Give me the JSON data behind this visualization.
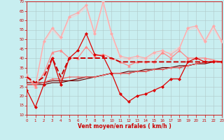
{
  "xlabel": "Vent moyen/en rafales ( km/h )",
  "xlim": [
    0,
    23
  ],
  "ylim": [
    10,
    70
  ],
  "yticks": [
    10,
    15,
    20,
    25,
    30,
    35,
    40,
    45,
    50,
    55,
    60,
    65,
    70
  ],
  "xticks": [
    0,
    1,
    2,
    3,
    4,
    5,
    6,
    7,
    8,
    9,
    10,
    11,
    12,
    13,
    14,
    15,
    16,
    17,
    18,
    19,
    20,
    21,
    22,
    23
  ],
  "background_color": "#c8eef0",
  "grid_color": "#b0c8c8",
  "series": [
    {
      "x": [
        0,
        1,
        2,
        3,
        4,
        5,
        6,
        7,
        8,
        9,
        10,
        11,
        12,
        13,
        14,
        15,
        16,
        17,
        18,
        19,
        20,
        21,
        22,
        23
      ],
      "y": [
        23,
        14,
        26,
        40,
        26,
        40,
        44,
        53,
        42,
        41,
        32,
        21,
        17,
        20,
        21,
        23,
        25,
        29,
        29,
        38,
        40,
        38,
        38,
        38
      ],
      "color": "#dd0000",
      "linewidth": 0.9,
      "marker": "D",
      "markersize": 2.0,
      "zorder": 6,
      "linestyle": "-"
    },
    {
      "x": [
        0,
        1,
        2,
        3,
        4,
        5,
        6,
        7,
        8,
        9,
        10,
        11,
        12,
        13,
        14,
        15,
        16,
        17,
        18,
        19,
        20,
        21,
        22,
        23
      ],
      "y": [
        30,
        27,
        30,
        40,
        30,
        40,
        40,
        40,
        40,
        40,
        40,
        38,
        38,
        38,
        38,
        38,
        38,
        38,
        38,
        38,
        38,
        38,
        38,
        38
      ],
      "color": "#cc0000",
      "linewidth": 1.4,
      "marker": null,
      "markersize": 0,
      "zorder": 5,
      "linestyle": "--"
    },
    {
      "x": [
        0,
        1,
        2,
        3,
        4,
        5,
        6,
        7,
        8,
        9,
        10,
        11,
        12,
        13,
        14,
        15,
        16,
        17,
        18,
        19,
        20,
        21,
        22,
        23
      ],
      "y": [
        27,
        27,
        27,
        28,
        28,
        28,
        29,
        30,
        30,
        31,
        32,
        32,
        32,
        33,
        33,
        34,
        34,
        35,
        35,
        36,
        37,
        37,
        38,
        38
      ],
      "color": "#880000",
      "linewidth": 0.9,
      "marker": null,
      "markersize": 0,
      "zorder": 3,
      "linestyle": "-"
    },
    {
      "x": [
        0,
        1,
        2,
        3,
        4,
        5,
        6,
        7,
        8,
        9,
        10,
        11,
        12,
        13,
        14,
        15,
        16,
        17,
        18,
        19,
        20,
        21,
        22,
        23
      ],
      "y": [
        26,
        26,
        26,
        27,
        27,
        28,
        28,
        29,
        30,
        31,
        32,
        32,
        33,
        33,
        34,
        34,
        35,
        35,
        36,
        36,
        37,
        38,
        38,
        38
      ],
      "color": "#660000",
      "linewidth": 0.8,
      "marker": null,
      "markersize": 0,
      "zorder": 2,
      "linestyle": "-"
    },
    {
      "x": [
        0,
        1,
        2,
        3,
        4,
        5,
        6,
        7,
        8,
        9,
        10,
        11,
        12,
        13,
        14,
        15,
        16,
        17,
        18,
        19,
        20,
        21,
        22,
        23
      ],
      "y": [
        30,
        25,
        32,
        43,
        44,
        40,
        40,
        46,
        41,
        42,
        40,
        38,
        36,
        38,
        38,
        38,
        43,
        40,
        44,
        40,
        40,
        40,
        39,
        38
      ],
      "color": "#ff8888",
      "linewidth": 0.9,
      "marker": "^",
      "markersize": 2.5,
      "zorder": 4,
      "linestyle": "-"
    },
    {
      "x": [
        0,
        1,
        2,
        3,
        4,
        5,
        6,
        7,
        8,
        9,
        10,
        11,
        12,
        13,
        14,
        15,
        16,
        17,
        18,
        19,
        20,
        21,
        22,
        23
      ],
      "y": [
        31,
        25,
        49,
        56,
        51,
        62,
        64,
        68,
        53,
        70,
        53,
        41,
        40,
        41,
        40,
        43,
        44,
        42,
        45,
        56,
        57,
        49,
        57,
        49
      ],
      "color": "#ffaaaa",
      "linewidth": 0.9,
      "marker": "D",
      "markersize": 2.0,
      "zorder": 3,
      "linestyle": "-"
    },
    {
      "x": [
        0,
        1,
        2,
        3,
        4,
        5,
        6,
        7,
        8,
        9,
        10,
        11,
        12,
        13,
        14,
        15,
        16,
        17,
        18,
        19,
        20,
        21,
        22,
        23
      ],
      "y": [
        30,
        24,
        48,
        55,
        50,
        61,
        63,
        67,
        52,
        69,
        52,
        40,
        39,
        40,
        39,
        42,
        43,
        43,
        46,
        55,
        56,
        48,
        56,
        48
      ],
      "color": "#ffcccc",
      "linewidth": 0.7,
      "marker": null,
      "markersize": 0,
      "zorder": 2,
      "linestyle": "-"
    },
    {
      "x": [
        0,
        1,
        2,
        3,
        4,
        5,
        6,
        7,
        8,
        9,
        10,
        11,
        12,
        13,
        14,
        15,
        16,
        17,
        18,
        19,
        20,
        21,
        22,
        23
      ],
      "y": [
        26,
        26,
        27,
        29,
        29,
        30,
        30,
        30,
        30,
        31,
        32,
        32,
        32,
        33,
        33,
        34,
        34,
        35,
        35,
        36,
        37,
        38,
        38,
        38
      ],
      "color": "#ee6666",
      "linewidth": 0.8,
      "marker": "+",
      "markersize": 2.5,
      "zorder": 4,
      "linestyle": "-"
    }
  ]
}
